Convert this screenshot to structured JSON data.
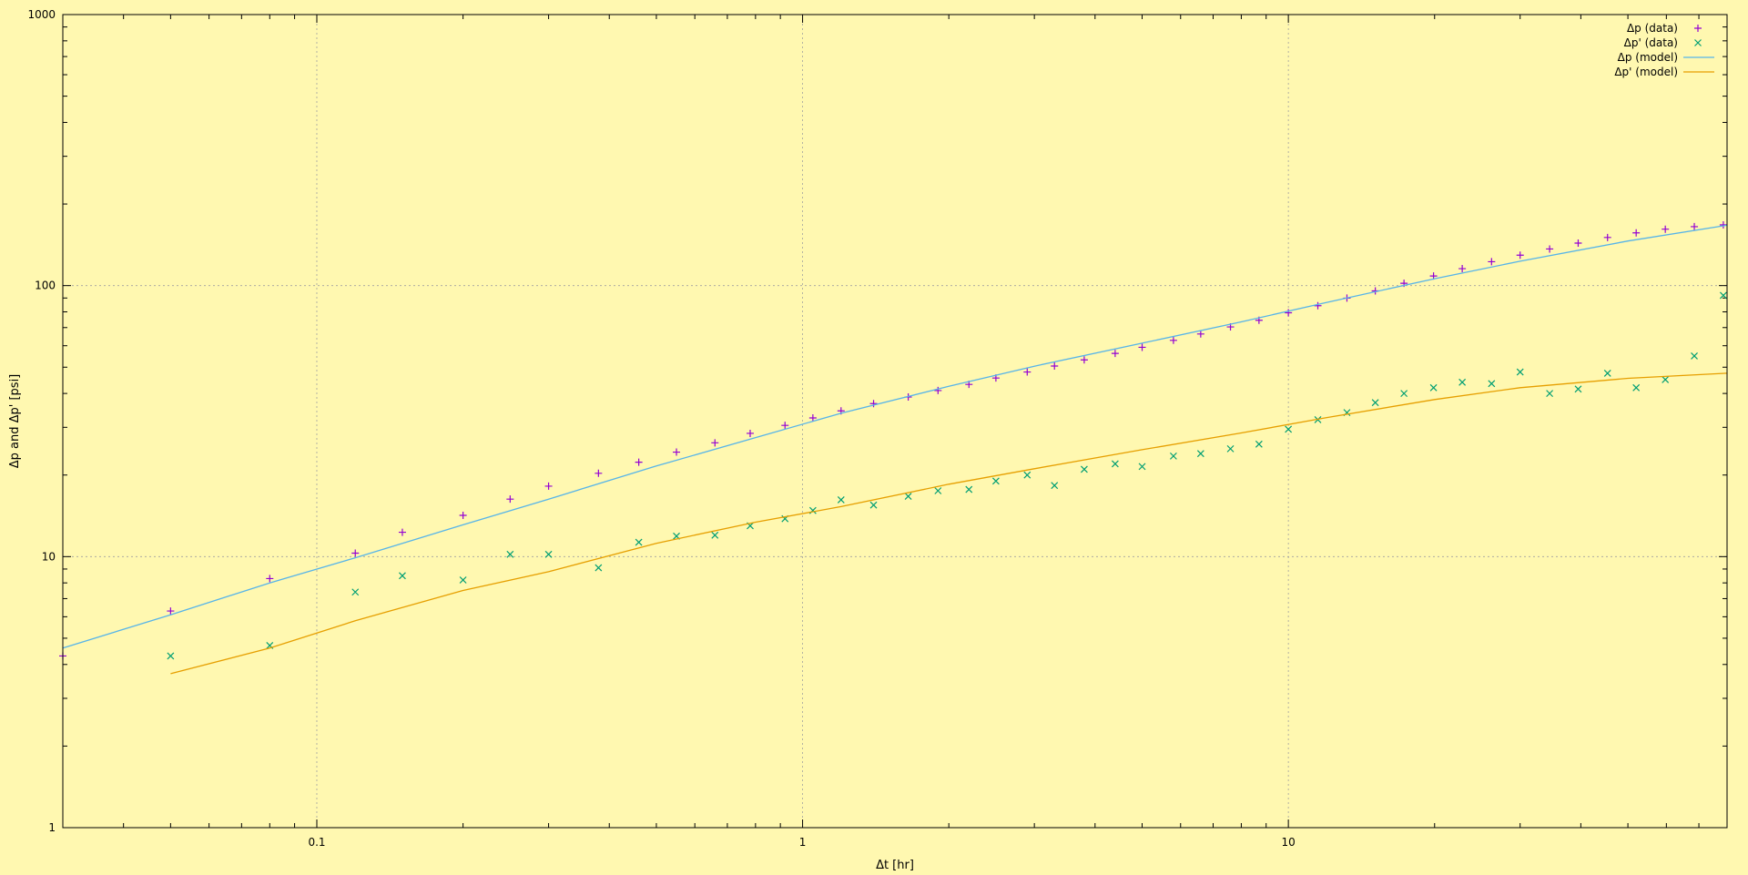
{
  "chart_data": {
    "type": "scatter",
    "title": "",
    "xlabel": "Δt [hr]",
    "ylabel": "Δp  and  Δp' [psi]",
    "xscale": "log",
    "yscale": "log",
    "xlim": [
      0.03,
      80
    ],
    "ylim": [
      1,
      1000
    ],
    "grid": true,
    "legend_position": "top-right",
    "x_ticks": [
      {
        "value": 0.1,
        "label": "0.1"
      },
      {
        "value": 1,
        "label": "1"
      },
      {
        "value": 10,
        "label": "10"
      }
    ],
    "y_ticks": [
      {
        "value": 1,
        "label": "1"
      },
      {
        "value": 10,
        "label": "10"
      },
      {
        "value": 100,
        "label": "100"
      },
      {
        "value": 1000,
        "label": "1000"
      }
    ],
    "series": [
      {
        "name": "Δp (data)",
        "style": "points",
        "marker": "plus",
        "color": "#9400d3",
        "x": [
          0.03,
          0.05,
          0.08,
          0.12,
          0.15,
          0.2,
          0.25,
          0.3,
          0.38,
          0.46,
          0.55,
          0.66,
          0.78,
          0.92,
          1.05,
          1.2,
          1.4,
          1.65,
          1.9,
          2.2,
          2.5,
          2.9,
          3.3,
          3.8,
          4.4,
          5.0,
          5.8,
          6.6,
          7.6,
          8.7,
          10,
          11.5,
          13.2,
          15.1,
          17.3,
          19.9,
          22.8,
          26.2,
          30,
          34.5,
          39.5,
          45.4,
          52,
          59.7,
          68.5,
          78.6
        ],
        "y": [
          4.3,
          6.3,
          8.3,
          10.3,
          12.3,
          14.2,
          16.3,
          18.2,
          20.3,
          22.3,
          24.3,
          26.3,
          28.5,
          30.5,
          32.5,
          34.5,
          36.7,
          38.8,
          41.0,
          43.2,
          45.6,
          48.0,
          50.5,
          53.2,
          56.2,
          59.2,
          62.8,
          66.3,
          70.4,
          74.5,
          79.4,
          84.3,
          89.9,
          95.6,
          102,
          108.5,
          115.5,
          122.5,
          129.5,
          136.5,
          143.5,
          150.5,
          156.5,
          161.5,
          165,
          167.5
        ]
      },
      {
        "name": "Δp' (data)",
        "style": "points",
        "marker": "cross",
        "color": "#009e73",
        "x": [
          0.05,
          0.08,
          0.12,
          0.15,
          0.2,
          0.25,
          0.3,
          0.38,
          0.46,
          0.55,
          0.66,
          0.78,
          0.92,
          1.05,
          1.2,
          1.4,
          1.65,
          1.9,
          2.2,
          2.5,
          2.9,
          3.3,
          3.8,
          4.4,
          5.0,
          5.8,
          6.6,
          7.6,
          8.7,
          10,
          11.5,
          13.2,
          15.1,
          17.3,
          19.9,
          22.8,
          26.2,
          30,
          34.5,
          39.5,
          45.4,
          52,
          59.7,
          68.5,
          78.6
        ],
        "y": [
          4.3,
          4.7,
          7.4,
          8.5,
          8.2,
          10.2,
          10.2,
          9.1,
          11.3,
          11.9,
          12.0,
          13.0,
          13.8,
          14.8,
          16.2,
          15.5,
          16.7,
          17.5,
          17.7,
          19.0,
          20.0,
          18.3,
          21.0,
          22.0,
          21.5,
          23.5,
          24.0,
          25.0,
          26.0,
          29.5,
          32.0,
          34.0,
          37.0,
          40.0,
          42.0,
          44.0,
          43.5,
          48.0,
          40.0,
          41.5,
          47.5,
          42.0,
          45.0,
          55.0,
          92.0
        ]
      },
      {
        "name": "Δp (model)",
        "style": "line",
        "color": "#56b4e9",
        "x": [
          0.03,
          0.05,
          0.08,
          0.12,
          0.2,
          0.3,
          0.5,
          0.8,
          1.2,
          2,
          3,
          5,
          8,
          12,
          20,
          30,
          50,
          80
        ],
        "y": [
          4.6,
          6.1,
          8.0,
          9.9,
          13.1,
          16.3,
          21.6,
          27.5,
          33.8,
          42.5,
          50.4,
          61.3,
          73.5,
          86.7,
          106,
          123,
          146,
          167
        ]
      },
      {
        "name": "Δp' (model)",
        "style": "line",
        "color": "#e69f00",
        "x": [
          0.05,
          0.08,
          0.12,
          0.2,
          0.3,
          0.5,
          0.8,
          1.2,
          2,
          3,
          5,
          8,
          12,
          20,
          30,
          50,
          80
        ],
        "y": [
          3.7,
          4.6,
          5.8,
          7.5,
          8.8,
          11.2,
          13.4,
          15.3,
          18.5,
          21.1,
          24.8,
          28.6,
          32.6,
          38.0,
          42.0,
          45.5,
          47.5
        ]
      }
    ]
  },
  "colors": {
    "background": "#fff8b0",
    "grid": "#a0a0a0",
    "axis": "#000000"
  }
}
